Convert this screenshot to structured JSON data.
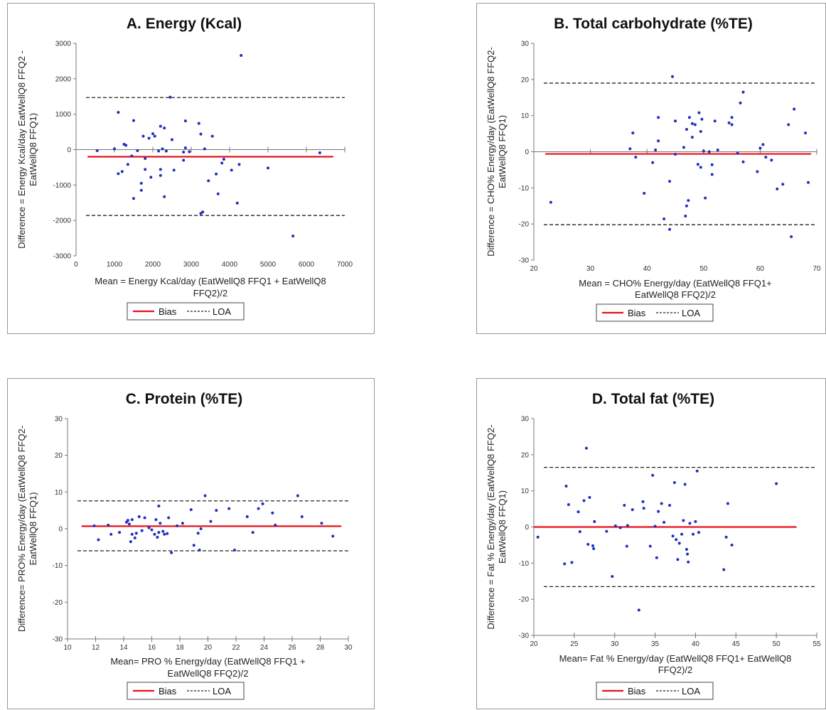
{
  "colors": {
    "bias": "#e8101a",
    "loa": "#222222",
    "points": "#1f2fbf",
    "axis": "#777777"
  },
  "legend": {
    "bias_label": "Bias",
    "loa_label": "LOA"
  },
  "chart_data": [
    {
      "panel": "A",
      "type": "scatter",
      "title": "A. Energy (Kcal)",
      "ylabel_lines": [
        "Difference = Energy Kcal/day EatWellQ8 FFQ2 -",
        "EatWellQ8 FFQ1)"
      ],
      "xlabel_lines": [
        "Mean =  Energy Kcal/day (EatWellQ8 FFQ1 + EatWellQ8",
        "FFQ2)/2"
      ],
      "xlim": [
        0,
        7000
      ],
      "ylim": [
        -3000,
        3000
      ],
      "xticks": [
        0,
        1000,
        2000,
        3000,
        4000,
        5000,
        6000,
        7000
      ],
      "yticks": [
        -3000,
        -2000,
        -1000,
        0,
        1000,
        2000,
        3000
      ],
      "xaxis_at_y": 0,
      "bias": -200,
      "loa": [
        1470,
        -1860
      ],
      "bias_x": [
        300,
        6700
      ],
      "points": [
        [
          550,
          -30
        ],
        [
          1000,
          20
        ],
        [
          1100,
          -680
        ],
        [
          1100,
          1050
        ],
        [
          1200,
          -620
        ],
        [
          1250,
          150
        ],
        [
          1300,
          120
        ],
        [
          1350,
          -420
        ],
        [
          1450,
          -180
        ],
        [
          1500,
          820
        ],
        [
          1500,
          -1380
        ],
        [
          1600,
          -30
        ],
        [
          1700,
          -1150
        ],
        [
          1700,
          -950
        ],
        [
          1750,
          380
        ],
        [
          1800,
          -250
        ],
        [
          1800,
          -560
        ],
        [
          1900,
          320
        ],
        [
          1950,
          -780
        ],
        [
          2000,
          450
        ],
        [
          2050,
          380
        ],
        [
          2150,
          -40
        ],
        [
          2200,
          660
        ],
        [
          2200,
          -560
        ],
        [
          2200,
          -730
        ],
        [
          2250,
          20
        ],
        [
          2300,
          610
        ],
        [
          2300,
          -1330
        ],
        [
          2350,
          -40
        ],
        [
          2450,
          1480
        ],
        [
          2500,
          280
        ],
        [
          2550,
          -580
        ],
        [
          2800,
          -70
        ],
        [
          2800,
          -300
        ],
        [
          2850,
          810
        ],
        [
          2850,
          50
        ],
        [
          2950,
          -60
        ],
        [
          3200,
          740
        ],
        [
          3250,
          440
        ],
        [
          3250,
          -1800
        ],
        [
          3300,
          -1760
        ],
        [
          3350,
          20
        ],
        [
          3450,
          -880
        ],
        [
          3550,
          380
        ],
        [
          3650,
          -690
        ],
        [
          3700,
          -1250
        ],
        [
          3800,
          -380
        ],
        [
          3850,
          -270
        ],
        [
          4050,
          -580
        ],
        [
          4200,
          -1510
        ],
        [
          4250,
          -420
        ],
        [
          4300,
          2660
        ],
        [
          5000,
          -520
        ],
        [
          5650,
          -2440
        ],
        [
          6350,
          -90
        ]
      ]
    },
    {
      "panel": "B",
      "type": "scatter",
      "title": "B. Total carbohydrate (%TE)",
      "ylabel_lines": [
        "Difference = CHO% Energy/day  (EatWellQ8 FFQ2-",
        "EatWellQ8 FFQ1)"
      ],
      "xlabel_lines": [
        "Mean = CHO% Energy/day (EatWellQ8 FFQ1+",
        "EatWellQ8 FFQ2)/2"
      ],
      "xlim": [
        20,
        70
      ],
      "ylim": [
        -30,
        30
      ],
      "xticks": [
        20,
        30,
        40,
        50,
        60,
        70
      ],
      "yticks": [
        -30,
        -20,
        -10,
        0,
        10,
        20,
        30
      ],
      "xaxis_at_y": 0,
      "bias": -0.6,
      "loa": [
        19,
        -20.2
      ],
      "bias_x": [
        22,
        69
      ],
      "points": [
        [
          23,
          -14
        ],
        [
          37,
          0.8
        ],
        [
          37.5,
          5.2
        ],
        [
          38,
          -1.5
        ],
        [
          39.5,
          -11.5
        ],
        [
          41,
          -3
        ],
        [
          41.5,
          0.5
        ],
        [
          42,
          9.5
        ],
        [
          42,
          3
        ],
        [
          43,
          -18.6
        ],
        [
          44,
          -21.5
        ],
        [
          44,
          -8.2
        ],
        [
          44.5,
          20.8
        ],
        [
          45,
          8.5
        ],
        [
          45,
          -0.7
        ],
        [
          46.5,
          1.2
        ],
        [
          46.8,
          -17.8
        ],
        [
          47,
          6.2
        ],
        [
          47,
          -15
        ],
        [
          47.3,
          -13.5
        ],
        [
          47.5,
          9.5
        ],
        [
          48,
          7.8
        ],
        [
          48,
          4
        ],
        [
          48.5,
          7.5
        ],
        [
          49,
          -3.5
        ],
        [
          49.2,
          10.8
        ],
        [
          49.5,
          -4.3
        ],
        [
          49.5,
          5.6
        ],
        [
          49.7,
          9
        ],
        [
          50,
          0.2
        ],
        [
          50.3,
          -12.8
        ],
        [
          51,
          0
        ],
        [
          51.5,
          -6.3
        ],
        [
          51.5,
          -3.6
        ],
        [
          52,
          8.5
        ],
        [
          52.5,
          0.5
        ],
        [
          54.5,
          8
        ],
        [
          55,
          9.5
        ],
        [
          55,
          7.5
        ],
        [
          56,
          -0.4
        ],
        [
          56.5,
          13.5
        ],
        [
          57,
          16.5
        ],
        [
          57,
          -2.8
        ],
        [
          59.5,
          -5.5
        ],
        [
          60,
          1
        ],
        [
          60.5,
          2
        ],
        [
          61,
          -1.5
        ],
        [
          62,
          -2.3
        ],
        [
          63,
          -10.3
        ],
        [
          64,
          -9
        ],
        [
          65,
          7.5
        ],
        [
          65.5,
          -23.5
        ],
        [
          66,
          11.8
        ],
        [
          68,
          5.2
        ],
        [
          68.5,
          -8.5
        ]
      ]
    },
    {
      "panel": "C",
      "type": "scatter",
      "title": "C. Protein (%TE)",
      "ylabel_lines": [
        "Difference= PRO% Energy/day (EatWellQ8 FFQ2-",
        "EatWellQ8 FFQ1)"
      ],
      "xlabel_lines": [
        "Mean= PRO % Energy/day  (EatWellQ8 FFQ1 +",
        "EatWellQ8 FFQ2)/2"
      ],
      "xlim": [
        10,
        30
      ],
      "ylim": [
        -30,
        30
      ],
      "xticks": [
        10,
        12,
        14,
        16,
        18,
        20,
        22,
        24,
        26,
        28,
        30
      ],
      "yticks": [
        -30,
        -20,
        -10,
        0,
        10,
        20,
        30
      ],
      "xaxis_at_y": -30,
      "bias": 0.7,
      "loa": [
        7.6,
        -6
      ],
      "bias_x": [
        11,
        29.5
      ],
      "points": [
        [
          11.9,
          0.8
        ],
        [
          12.2,
          -3
        ],
        [
          12.9,
          1
        ],
        [
          13.1,
          -1.5
        ],
        [
          13.7,
          -1
        ],
        [
          14.2,
          1.8
        ],
        [
          14.3,
          2.3
        ],
        [
          14.4,
          1.3
        ],
        [
          14.5,
          -3.5
        ],
        [
          14.6,
          2.5
        ],
        [
          14.6,
          -1.5
        ],
        [
          14.8,
          -2.5
        ],
        [
          14.9,
          -1.2
        ],
        [
          15.1,
          3.3
        ],
        [
          15.3,
          -0.5
        ],
        [
          15.5,
          3
        ],
        [
          15.8,
          0.3
        ],
        [
          16,
          -0.3
        ],
        [
          16.2,
          -1.5
        ],
        [
          16.3,
          2.5
        ],
        [
          16.4,
          -2.3
        ],
        [
          16.5,
          -1
        ],
        [
          16.5,
          6.2
        ],
        [
          16.6,
          1.5
        ],
        [
          16.8,
          -0.7
        ],
        [
          16.9,
          -1.5
        ],
        [
          17.1,
          -1.3
        ],
        [
          17.2,
          3
        ],
        [
          17.4,
          -6.5
        ],
        [
          17.8,
          0.8
        ],
        [
          18.2,
          1.5
        ],
        [
          18.8,
          5.2
        ],
        [
          19,
          -4.5
        ],
        [
          19.3,
          -1.2
        ],
        [
          19.4,
          -5.8
        ],
        [
          19.5,
          0
        ],
        [
          19.8,
          9
        ],
        [
          20.2,
          2
        ],
        [
          20.6,
          5
        ],
        [
          21.5,
          5.5
        ],
        [
          21.9,
          -5.8
        ],
        [
          22.8,
          3.3
        ],
        [
          23.2,
          -1
        ],
        [
          23.6,
          5.5
        ],
        [
          23.9,
          6.8
        ],
        [
          24.6,
          4.3
        ],
        [
          24.8,
          1
        ],
        [
          26.4,
          9
        ],
        [
          26.7,
          3.3
        ],
        [
          28.1,
          1.5
        ],
        [
          28.9,
          -2
        ]
      ]
    },
    {
      "panel": "D",
      "type": "scatter",
      "title": "D. Total fat (%TE)",
      "ylabel_lines": [
        "Difference = Fat % Energy/day (EatWellQ8 FFQ2-",
        "EatWellQ8 FFQ1)"
      ],
      "xlabel_lines": [
        "Mean= Fat % Energy/day  (EatWellQ8 FFQ1+ EatWellQ8",
        "FFQ2)/2"
      ],
      "xlim": [
        20,
        55
      ],
      "ylim": [
        -30,
        30
      ],
      "xticks": [
        20,
        25,
        30,
        35,
        40,
        45,
        50,
        55
      ],
      "yticks": [
        -30,
        -20,
        -10,
        0,
        10,
        20,
        30
      ],
      "xaxis_at_y": -30,
      "bias": 0,
      "loa": [
        16.5,
        -16.5
      ],
      "bias_x": [
        20,
        52.5
      ],
      "points": [
        [
          20.5,
          -2.8
        ],
        [
          23.8,
          -10.2
        ],
        [
          24,
          11.3
        ],
        [
          24.3,
          6.2
        ],
        [
          24.7,
          -9.8
        ],
        [
          25.5,
          4.2
        ],
        [
          25.7,
          -1.3
        ],
        [
          26.2,
          7.3
        ],
        [
          26.5,
          21.8
        ],
        [
          26.7,
          -4.8
        ],
        [
          26.9,
          8.2
        ],
        [
          27.3,
          -5.2
        ],
        [
          27.4,
          -6
        ],
        [
          27.5,
          1.5
        ],
        [
          29,
          -1.2
        ],
        [
          29.7,
          -13.7
        ],
        [
          30.1,
          0.3
        ],
        [
          30.7,
          -0.2
        ],
        [
          31.2,
          6
        ],
        [
          31.5,
          -5.3
        ],
        [
          31.6,
          0.4
        ],
        [
          32.2,
          4.8
        ],
        [
          33,
          -23
        ],
        [
          33.5,
          7
        ],
        [
          33.6,
          5.2
        ],
        [
          34.4,
          -5.3
        ],
        [
          34.7,
          14.3
        ],
        [
          35,
          0.2
        ],
        [
          35.2,
          -8.5
        ],
        [
          35.4,
          4.3
        ],
        [
          35.8,
          6.5
        ],
        [
          36.1,
          1.3
        ],
        [
          36.8,
          6
        ],
        [
          37.2,
          -2.5
        ],
        [
          37.4,
          12.3
        ],
        [
          37.6,
          -3.5
        ],
        [
          37.8,
          -9
        ],
        [
          38,
          -4.5
        ],
        [
          38.3,
          -2
        ],
        [
          38.5,
          1.8
        ],
        [
          38.7,
          11.8
        ],
        [
          38.9,
          -6.2
        ],
        [
          39,
          -7.5
        ],
        [
          39.1,
          -9.7
        ],
        [
          39.3,
          1
        ],
        [
          39.7,
          -2
        ],
        [
          40,
          1.5
        ],
        [
          40.2,
          15.5
        ],
        [
          40.4,
          -1.5
        ],
        [
          43.5,
          -11.8
        ],
        [
          43.8,
          -2.8
        ],
        [
          44,
          6.5
        ],
        [
          44.5,
          -5
        ],
        [
          50,
          12
        ]
      ]
    }
  ]
}
